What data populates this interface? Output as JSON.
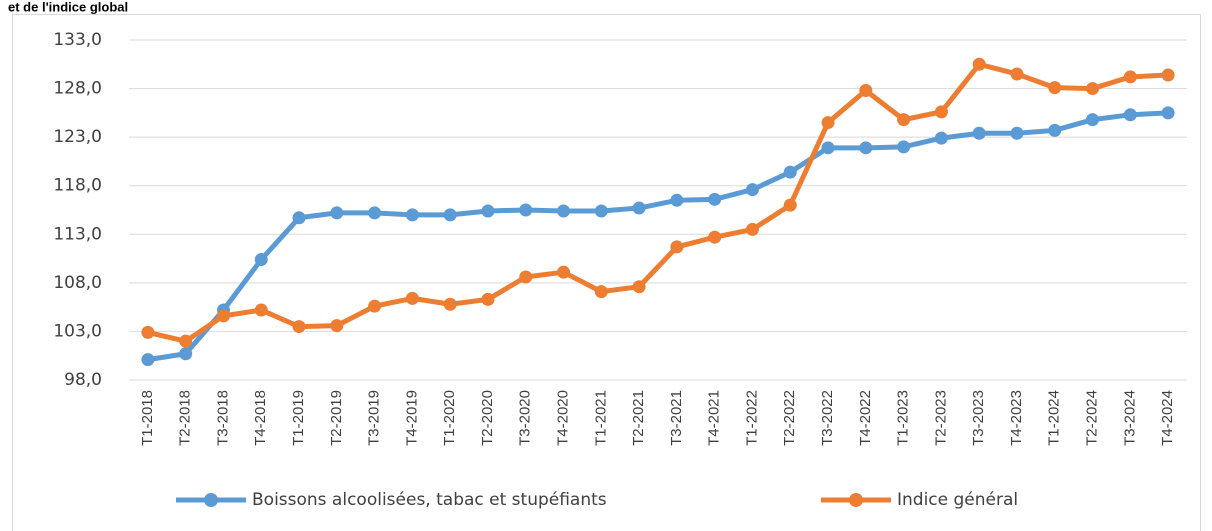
{
  "chart_data": {
    "type": "line",
    "title": "et de l'indice global",
    "categories": [
      "T1-2018",
      "T2-2018",
      "T3-2018",
      "T4-2018",
      "T1-2019",
      "T2-2019",
      "T3-2019",
      "T4-2019",
      "T1-2020",
      "T2-2020",
      "T3-2020",
      "T4-2020",
      "T1-2021",
      "T2-2021",
      "T3-2021",
      "T4-2021",
      "T1-2022",
      "T2-2022",
      "T3-2022",
      "T4-2022",
      "T1-2023",
      "T2-2023",
      "T3-2023",
      "T4-2023",
      "T1-2024",
      "T2-2024",
      "T3-2024",
      "T4-2024"
    ],
    "series": [
      {
        "name": "Boissons alcoolisées, tabac et stupéfiants",
        "color": "#5b9bd5",
        "values": [
          100.1,
          100.7,
          105.2,
          110.4,
          114.7,
          115.2,
          115.2,
          115.0,
          115.0,
          115.4,
          115.5,
          115.4,
          115.4,
          115.7,
          116.5,
          116.6,
          117.6,
          119.4,
          121.9,
          121.9,
          122.0,
          122.9,
          123.4,
          123.4,
          123.7,
          124.8,
          125.3,
          125.5
        ]
      },
      {
        "name": "Indice général",
        "color": "#ed7d31",
        "values": [
          102.9,
          102.0,
          104.6,
          105.2,
          103.5,
          103.6,
          105.6,
          106.4,
          105.8,
          106.3,
          108.6,
          109.1,
          107.1,
          107.6,
          111.7,
          112.7,
          113.5,
          116.0,
          124.5,
          127.8,
          124.8,
          125.6,
          130.5,
          129.5,
          128.1,
          128.0,
          129.2,
          129.4
        ]
      }
    ],
    "ylim": [
      98,
      133
    ],
    "yticks": [
      {
        "value": 98,
        "label": "98,0"
      },
      {
        "value": 103,
        "label": "103,0"
      },
      {
        "value": 108,
        "label": "108,0"
      },
      {
        "value": 113,
        "label": "113,0"
      },
      {
        "value": 118,
        "label": "118,0"
      },
      {
        "value": 123,
        "label": "123,0"
      },
      {
        "value": 128,
        "label": "128,0"
      },
      {
        "value": 133,
        "label": "133,0"
      }
    ],
    "grid": true,
    "legend": "bottom"
  }
}
